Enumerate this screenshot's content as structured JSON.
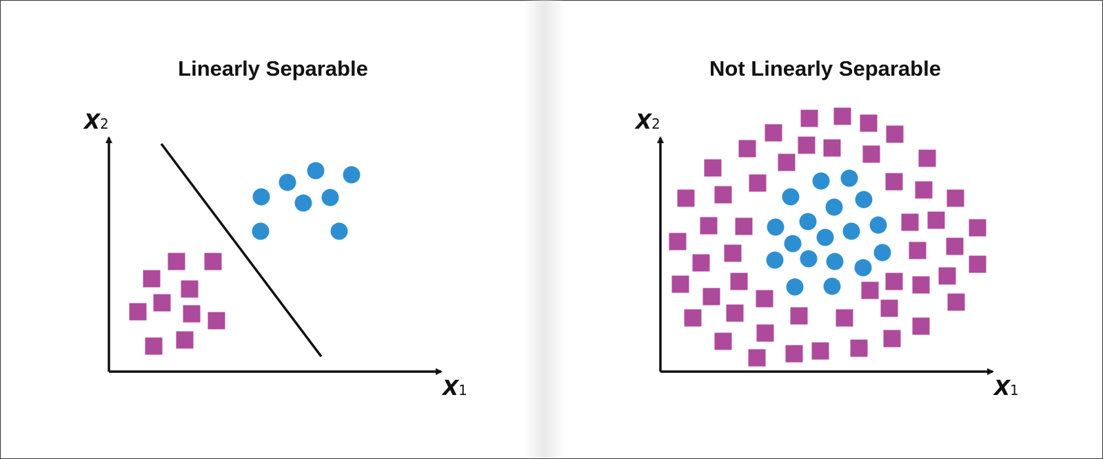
{
  "colors": {
    "square": "#AD4A9B",
    "circle": "#2D8FD1",
    "axis": "#111111",
    "separator_line": "#111111"
  },
  "panels": [
    {
      "title": "Linearly Separable",
      "x_axis_label": {
        "letter": "X",
        "subscript": "1"
      },
      "y_axis_label": {
        "letter": "X",
        "subscript": "2"
      },
      "has_separator_line": true
    },
    {
      "title": "Not Linearly Separable",
      "x_axis_label": {
        "letter": "X",
        "subscript": "1"
      },
      "y_axis_label": {
        "letter": "X",
        "subscript": "2"
      },
      "has_separator_line": false
    }
  ]
}
